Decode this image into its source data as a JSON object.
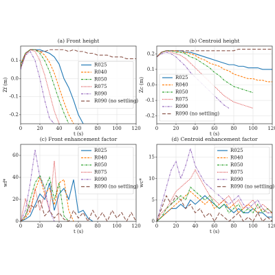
{
  "chart_data": [
    {
      "type": "line",
      "title": "(a) Front height",
      "xlabel": "t (s)",
      "ylabel": "Zf (m)",
      "x": [
        0,
        5,
        10,
        15,
        20,
        25,
        30,
        35,
        40,
        45,
        50,
        55,
        60,
        65,
        70,
        75,
        80,
        85,
        90,
        95,
        100,
        105,
        110,
        115,
        120
      ],
      "xlim": [
        0,
        120
      ],
      "xticks": [
        0,
        20,
        40,
        60,
        80,
        100,
        120
      ],
      "ylim": [
        -0.25,
        0.18
      ],
      "yticks": [
        -0.2,
        -0.1,
        {
          "value": 0,
          "label": "0.0"
        },
        0.1
      ],
      "grid": true,
      "legend": "center right",
      "series": [
        {
          "name": "R025",
          "color": "#1f77b4",
          "linestyle": "solid",
          "values": [
            0.08,
            0.14,
            0.16,
            0.16,
            0.16,
            0.15,
            0.14,
            0.12,
            0.08,
            0.0,
            -0.05,
            -0.12,
            -0.2,
            -0.25,
            null,
            null,
            null,
            null,
            null,
            null,
            null,
            null,
            null,
            null,
            null
          ]
        },
        {
          "name": "R040",
          "color": "#ff7f0e",
          "linestyle": "dashed",
          "values": [
            0.08,
            0.14,
            0.16,
            0.16,
            0.15,
            0.13,
            0.09,
            0.03,
            -0.05,
            -0.13,
            -0.2,
            -0.25,
            null,
            null,
            null,
            null,
            null,
            null,
            null,
            null,
            null,
            null,
            null,
            null,
            null
          ]
        },
        {
          "name": "R050",
          "color": "#2ca02c",
          "linestyle": "dashdot",
          "values": [
            0.07,
            0.14,
            0.16,
            0.16,
            0.14,
            0.1,
            0.04,
            -0.04,
            -0.12,
            -0.19,
            -0.25,
            null,
            null,
            null,
            null,
            null,
            null,
            null,
            null,
            null,
            null,
            null,
            null,
            null,
            null
          ]
        },
        {
          "name": "R075",
          "color": "#d62728",
          "linestyle": "dotted",
          "values": [
            0.06,
            0.13,
            0.16,
            0.15,
            0.1,
            0.02,
            -0.08,
            -0.18,
            -0.25,
            null,
            null,
            null,
            null,
            null,
            null,
            null,
            null,
            null,
            null,
            null,
            null,
            null,
            null,
            null,
            null
          ]
        },
        {
          "name": "R090",
          "color": "#9467bd",
          "linestyle": "dashdotdot",
          "values": [
            0.05,
            0.13,
            0.15,
            0.1,
            0.0,
            -0.12,
            -0.22,
            -0.25,
            null,
            null,
            null,
            null,
            null,
            null,
            null,
            null,
            null,
            null,
            null,
            null,
            null,
            null,
            null,
            null,
            null
          ]
        },
        {
          "name": "R090 (no settling)",
          "color": "#8c564b",
          "linestyle": "longdash",
          "values": [
            0.06,
            0.14,
            0.16,
            0.16,
            0.15,
            0.15,
            0.16,
            0.16,
            0.16,
            0.16,
            0.15,
            0.16,
            0.15,
            0.15,
            0.14,
            0.14,
            0.13,
            0.13,
            0.13,
            0.12,
            0.12,
            0.12,
            0.11,
            0.11,
            0.11
          ]
        }
      ]
    },
    {
      "type": "line",
      "title": "(b) Centroid height",
      "xlabel": "t (s)",
      "ylabel": "Zc (m)",
      "x": [
        0,
        5,
        10,
        15,
        20,
        25,
        30,
        35,
        40,
        45,
        50,
        55,
        60,
        65,
        70,
        75,
        80,
        85,
        90,
        95,
        100,
        105,
        110,
        115,
        120
      ],
      "xlim": [
        0,
        120
      ],
      "xticks": [
        0,
        20,
        40,
        60,
        80,
        100,
        120
      ],
      "ylim": [
        -0.25,
        0.25
      ],
      "yticks": [
        -0.2,
        -0.1,
        {
          "value": 0,
          "label": "0.0"
        },
        0.1,
        0.2
      ],
      "grid": true,
      "legend": "lower left",
      "series": [
        {
          "name": "R025",
          "color": "#1f77b4",
          "linestyle": "solid",
          "values": [
            0.18,
            0.21,
            0.22,
            0.22,
            0.22,
            0.22,
            0.21,
            0.21,
            0.2,
            0.19,
            0.18,
            0.17,
            0.16,
            0.15,
            0.14,
            0.13,
            0.13,
            0.12,
            0.12,
            0.11,
            0.11,
            0.11,
            0.1,
            0.1,
            0.1
          ]
        },
        {
          "name": "R040",
          "color": "#ff7f0e",
          "linestyle": "dashed",
          "values": [
            0.18,
            0.21,
            0.22,
            0.22,
            0.22,
            0.21,
            0.21,
            0.2,
            0.19,
            0.17,
            0.16,
            0.14,
            0.13,
            0.12,
            0.1,
            0.09,
            0.07,
            0.06,
            0.05,
            0.04,
            0.04,
            0.03,
            0.03,
            0.02,
            0.02
          ]
        },
        {
          "name": "R050",
          "color": "#2ca02c",
          "linestyle": "dashdot",
          "values": [
            0.18,
            0.21,
            0.22,
            0.22,
            0.21,
            0.21,
            0.2,
            0.18,
            0.17,
            0.15,
            0.13,
            0.11,
            0.08,
            0.06,
            0.03,
            0.01,
            -0.01,
            -0.02,
            -0.03,
            -0.04,
            -0.05,
            null,
            null,
            null,
            null
          ]
        },
        {
          "name": "R075",
          "color": "#d62728",
          "linestyle": "dotted",
          "values": [
            0.18,
            0.21,
            0.22,
            0.21,
            0.2,
            0.19,
            0.17,
            0.14,
            0.11,
            0.08,
            0.05,
            0.02,
            -0.01,
            -0.04,
            -0.07,
            -0.09,
            -0.11,
            -0.12,
            -0.13,
            -0.14,
            -0.15,
            null,
            null,
            null,
            null
          ]
        },
        {
          "name": "R090",
          "color": "#9467bd",
          "linestyle": "dashdotdot",
          "values": [
            0.18,
            0.2,
            0.21,
            0.2,
            0.18,
            0.15,
            0.12,
            0.08,
            0.05,
            0.02,
            -0.01,
            -0.04,
            -0.07,
            -0.1,
            -0.13,
            -0.15,
            null,
            null,
            null,
            null,
            null,
            null,
            null,
            null,
            null
          ]
        },
        {
          "name": "R090 (no settling)",
          "color": "#8c564b",
          "linestyle": "longdash",
          "values": [
            0.18,
            0.21,
            0.22,
            0.22,
            0.22,
            0.22,
            0.22,
            0.22,
            0.22,
            0.22,
            0.22,
            0.22,
            0.22,
            0.22,
            0.22,
            0.22,
            0.22,
            0.23,
            0.23,
            0.23,
            0.23,
            0.23,
            0.23,
            0.23,
            0.23
          ]
        }
      ]
    },
    {
      "type": "line",
      "title": "(c) Front enhancement factor",
      "xlabel": "t (s)",
      "ylabel": "wf*",
      "x": [
        0,
        5,
        10,
        15,
        20,
        25,
        30,
        35,
        40,
        45,
        50,
        55,
        60,
        65,
        70,
        75,
        80,
        85,
        90,
        95,
        100,
        105,
        110,
        115,
        120
      ],
      "xlim": [
        0,
        120
      ],
      "xticks": [
        0,
        20,
        40,
        60,
        80,
        100,
        120
      ],
      "ylim": [
        0,
        70
      ],
      "yticks": [
        0,
        20,
        40,
        60
      ],
      "grid": true,
      "legend": "upper right",
      "series": [
        {
          "name": "R025",
          "color": "#1f77b4",
          "linestyle": "solid",
          "values": [
            0,
            2,
            5,
            15,
            25,
            20,
            35,
            10,
            25,
            30,
            20,
            38,
            8,
            10,
            3,
            0,
            null,
            null,
            null,
            null,
            null,
            null,
            null,
            null,
            null
          ]
        },
        {
          "name": "R040",
          "color": "#ff7f0e",
          "linestyle": "dashed",
          "values": [
            0,
            3,
            10,
            28,
            40,
            25,
            30,
            15,
            35,
            38,
            10,
            0,
            null,
            null,
            null,
            null,
            null,
            null,
            null,
            null,
            null,
            null,
            null,
            null,
            null
          ]
        },
        {
          "name": "R050",
          "color": "#2ca02c",
          "linestyle": "dashdot",
          "values": [
            0,
            5,
            20,
            35,
            42,
            30,
            40,
            20,
            35,
            5,
            0,
            null,
            null,
            null,
            null,
            null,
            null,
            null,
            null,
            null,
            null,
            null,
            null,
            null,
            null
          ]
        },
        {
          "name": "R075",
          "color": "#d62728",
          "linestyle": "dotted",
          "values": [
            0,
            20,
            8,
            30,
            10,
            25,
            10,
            55,
            0,
            null,
            null,
            null,
            null,
            null,
            null,
            null,
            null,
            null,
            null,
            null,
            null,
            null,
            null,
            null,
            null
          ]
        },
        {
          "name": "R090",
          "color": "#9467bd",
          "linestyle": "dashdotdot",
          "values": [
            0,
            10,
            35,
            65,
            40,
            30,
            10,
            0,
            null,
            null,
            null,
            null,
            null,
            null,
            null,
            null,
            null,
            null,
            null,
            null,
            null,
            null,
            null,
            null,
            null
          ]
        },
        {
          "name": "R090 (no settling)",
          "color": "#8c564b",
          "linestyle": "longdash",
          "values": [
            0,
            5,
            15,
            12,
            20,
            5,
            10,
            3,
            8,
            2,
            0,
            10,
            3,
            8,
            0,
            10,
            2,
            8,
            0,
            10,
            3,
            8,
            0,
            8,
            0
          ]
        }
      ]
    },
    {
      "type": "line",
      "title": "(d) Centroid enhancement factor",
      "xlabel": "t (s)",
      "ylabel": "wc*",
      "x": [
        0,
        5,
        10,
        15,
        20,
        25,
        30,
        35,
        40,
        45,
        50,
        55,
        60,
        65,
        70,
        75,
        80,
        85,
        90,
        95,
        100,
        105,
        110,
        115,
        120
      ],
      "xlim": [
        0,
        120
      ],
      "xticks": [
        0,
        20,
        40,
        60,
        80,
        100,
        120
      ],
      "ylim": [
        0,
        18
      ],
      "yticks": [
        0,
        5,
        10,
        15
      ],
      "grid": true,
      "legend": "upper right",
      "series": [
        {
          "name": "R025",
          "color": "#1f77b4",
          "linestyle": "solid",
          "values": [
            0,
            1,
            2,
            3,
            3,
            4,
            3,
            5,
            4,
            5,
            6,
            5,
            4,
            3,
            4,
            3,
            2,
            3,
            2,
            2,
            3,
            2,
            2,
            1,
            1
          ]
        },
        {
          "name": "R040",
          "color": "#ff7f0e",
          "linestyle": "dashed",
          "values": [
            0,
            1,
            2,
            3,
            4,
            5,
            6,
            7,
            6,
            5,
            4,
            5,
            3,
            4,
            5,
            3,
            4,
            2,
            3,
            4,
            3,
            2,
            3,
            2,
            2
          ]
        },
        {
          "name": "R050",
          "color": "#2ca02c",
          "linestyle": "dashdot",
          "values": [
            0,
            1,
            3,
            4,
            5,
            6,
            5,
            8,
            7,
            6,
            5,
            6,
            4,
            3,
            4,
            2,
            3,
            4,
            2,
            3,
            2,
            4,
            2,
            3,
            2
          ]
        },
        {
          "name": "R075",
          "color": "#d62728",
          "linestyle": "dotted",
          "values": [
            0,
            2,
            3,
            5,
            7,
            8,
            9,
            10,
            12,
            10,
            8,
            6,
            5,
            4,
            5,
            6,
            4,
            5,
            3,
            4,
            5,
            3,
            4,
            3,
            2
          ]
        },
        {
          "name": "R090",
          "color": "#9467bd",
          "linestyle": "dashdotdot",
          "values": [
            0,
            4,
            8,
            12,
            14,
            10,
            13,
            17,
            13,
            11,
            9,
            8,
            7,
            6,
            5,
            4,
            5,
            6,
            4,
            3,
            4,
            5,
            3,
            2,
            2
          ]
        },
        {
          "name": "R090 (no settling)",
          "color": "#8c564b",
          "linestyle": "longdash",
          "values": [
            0,
            3,
            6,
            4,
            6,
            5,
            3,
            4,
            2,
            3,
            1,
            2,
            0,
            2,
            1,
            0,
            1,
            2,
            0,
            1,
            0,
            2,
            0,
            1,
            0
          ]
        }
      ]
    }
  ]
}
